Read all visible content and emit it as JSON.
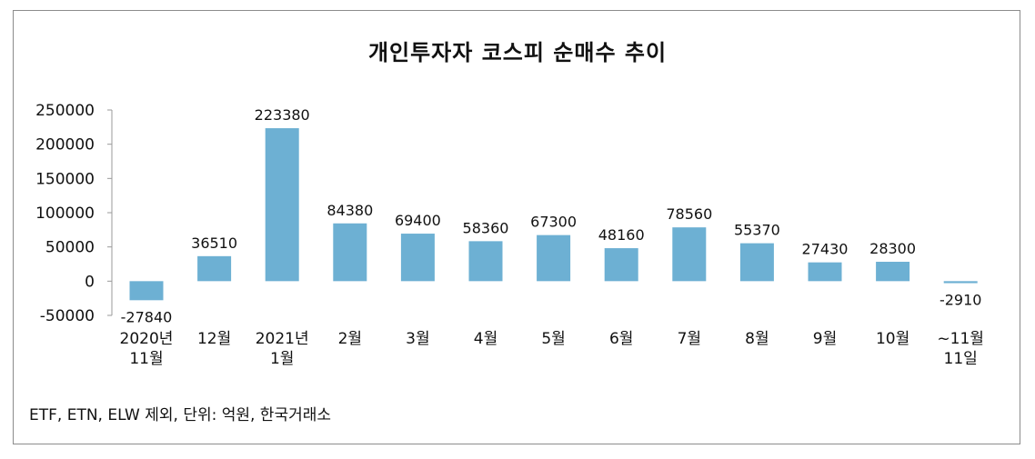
{
  "chart_data": {
    "type": "bar",
    "title": "개인투자자 코스피 순매수 추이",
    "categories": [
      [
        "2020년",
        "11월"
      ],
      [
        "12월"
      ],
      [
        "2021년",
        "1월"
      ],
      [
        "2월"
      ],
      [
        "3월"
      ],
      [
        "4월"
      ],
      [
        "5월"
      ],
      [
        "6월"
      ],
      [
        "7월"
      ],
      [
        "8월"
      ],
      [
        "9월"
      ],
      [
        "10월"
      ],
      [
        "~11월",
        "11일"
      ]
    ],
    "values": [
      -27840,
      36510,
      223380,
      84380,
      69400,
      58360,
      67300,
      48160,
      78560,
      55370,
      27430,
      28300,
      -2910
    ],
    "value_labels": [
      "-27840",
      "36510",
      "223380",
      "84380",
      "69400",
      "58360",
      "67300",
      "48160",
      "78560",
      "55370",
      "27430",
      "28300",
      "-2910"
    ],
    "yticks": [
      250000,
      200000,
      150000,
      100000,
      50000,
      0,
      -50000
    ],
    "ylim": [
      -50000,
      250000
    ],
    "bar_color": "#6db0d3",
    "xlabel": "",
    "ylabel": ""
  },
  "footnote": "ETF, ETN, ELW 제외, 단위: 억원, 한국거래소"
}
